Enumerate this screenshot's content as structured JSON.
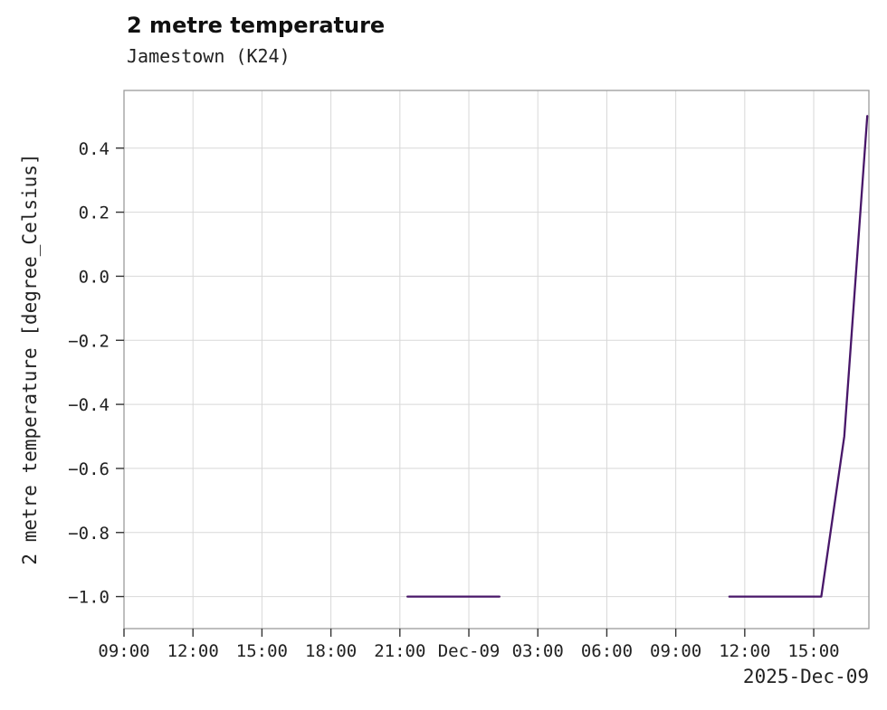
{
  "chart_data": {
    "type": "line",
    "title": "2 metre temperature",
    "subtitle": "Jamestown (K24)",
    "ylabel": "2 metre temperature [degree_Celsius]",
    "xlabel": "2025-Dec-09",
    "x_unit": "hours since 2025-Dec-08 00:00",
    "xlim": [
      9,
      41.4
    ],
    "ylim": [
      -1.1,
      0.58
    ],
    "grid": true,
    "legend": false,
    "x_ticks": [
      {
        "value": 9,
        "label": "09:00"
      },
      {
        "value": 12,
        "label": "12:00"
      },
      {
        "value": 15,
        "label": "15:00"
      },
      {
        "value": 18,
        "label": "18:00"
      },
      {
        "value": 21,
        "label": "21:00"
      },
      {
        "value": 24,
        "label": "Dec-09"
      },
      {
        "value": 27,
        "label": "03:00"
      },
      {
        "value": 30,
        "label": "06:00"
      },
      {
        "value": 33,
        "label": "09:00"
      },
      {
        "value": 36,
        "label": "12:00"
      },
      {
        "value": 39,
        "label": "15:00"
      }
    ],
    "y_ticks": [
      {
        "value": 0.4,
        "label": "0.4"
      },
      {
        "value": 0.2,
        "label": "0.2"
      },
      {
        "value": 0.0,
        "label": "0.0"
      },
      {
        "value": -0.2,
        "label": "−0.2"
      },
      {
        "value": -0.4,
        "label": "−0.4"
      },
      {
        "value": -0.6,
        "label": "−0.6"
      },
      {
        "value": -0.8,
        "label": "−0.8"
      },
      {
        "value": -1.0,
        "label": "−1.0"
      }
    ],
    "series": [
      {
        "name": "2 metre temperature",
        "color": "#481769",
        "segments": [
          [
            [
              21.33,
              -1.0
            ],
            [
              22.33,
              -1.0
            ],
            [
              23.33,
              -1.0
            ],
            [
              24.33,
              -1.0
            ],
            [
              25.33,
              -1.0
            ]
          ],
          [
            [
              35.33,
              -1.0
            ],
            [
              36.33,
              -1.0
            ],
            [
              37.33,
              -1.0
            ],
            [
              38.33,
              -1.0
            ],
            [
              39.33,
              -1.0
            ],
            [
              40.33,
              -0.5
            ],
            [
              41.33,
              0.5
            ]
          ]
        ]
      }
    ],
    "grid_color": "#d8d8d8",
    "spine_color": "#9b9b9b",
    "tick_color": "#333333"
  }
}
